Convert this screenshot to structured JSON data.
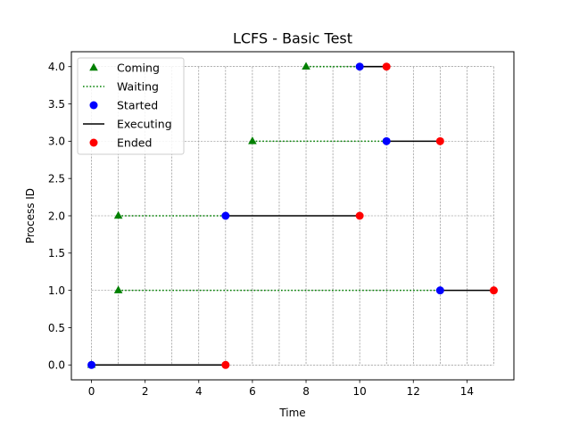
{
  "chart_data": {
    "type": "scatter",
    "title": "LCFS - Basic Test",
    "xlabel": "Time",
    "ylabel": "Process ID",
    "xlim": [
      -0.75,
      15.75
    ],
    "ylim": [
      -0.2,
      4.2
    ],
    "xticks": [
      0,
      2,
      4,
      6,
      8,
      10,
      12,
      14
    ],
    "xtick_labels": [
      "0",
      "2",
      "4",
      "6",
      "8",
      "10",
      "12",
      "14"
    ],
    "yticks": [
      0.0,
      0.5,
      1.0,
      1.5,
      2.0,
      2.5,
      3.0,
      3.5,
      4.0
    ],
    "ytick_labels": [
      "0.0",
      "0.5",
      "1.0",
      "1.5",
      "2.0",
      "2.5",
      "3.0",
      "3.5",
      "4.0"
    ],
    "grid": true,
    "grid_x": [
      0,
      1,
      2,
      3,
      4,
      5,
      6,
      7,
      8,
      9,
      10,
      11,
      12,
      13,
      14,
      15
    ],
    "grid_y": [
      0,
      1,
      2,
      3,
      4
    ],
    "grid_x_range": [
      0,
      15
    ],
    "grid_y_range": [
      0,
      4
    ],
    "legend_position": "upper-left",
    "legend": [
      {
        "label": "Coming",
        "kind": "marker",
        "marker": "triangle",
        "color": "#008000"
      },
      {
        "label": "Waiting",
        "kind": "line",
        "style": "dotted",
        "color": "#008000"
      },
      {
        "label": "Started",
        "kind": "marker",
        "marker": "circle",
        "color": "#0000ff"
      },
      {
        "label": "Executing",
        "kind": "line",
        "style": "solid",
        "color": "#000000"
      },
      {
        "label": "Ended",
        "kind": "marker",
        "marker": "circle",
        "color": "#ff0000"
      }
    ],
    "processes": [
      {
        "id": 0,
        "coming": 0,
        "started": 0,
        "ended": 5
      },
      {
        "id": 1,
        "coming": 1,
        "started": 13,
        "ended": 15
      },
      {
        "id": 2,
        "coming": 1,
        "started": 5,
        "ended": 10
      },
      {
        "id": 3,
        "coming": 6,
        "started": 11,
        "ended": 13
      },
      {
        "id": 4,
        "coming": 8,
        "started": 10,
        "ended": 11
      }
    ],
    "colors": {
      "coming": "#008000",
      "waiting": "#008000",
      "started": "#0000ff",
      "executing": "#000000",
      "ended": "#ff0000",
      "grid": "#808080"
    }
  }
}
